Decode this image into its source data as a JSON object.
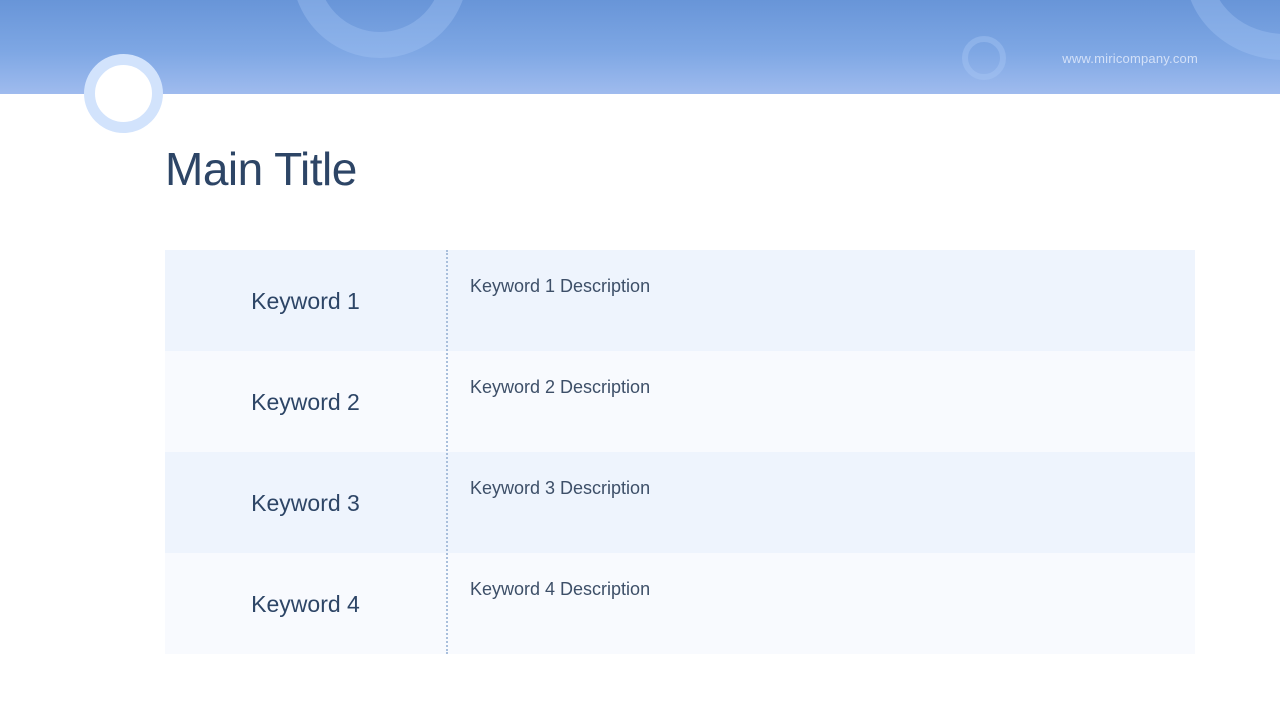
{
  "header": {
    "url": "www.miricompany.com"
  },
  "title": "Main Title",
  "rows": [
    {
      "keyword": "Keyword 1",
      "description": "Keyword 1 Description"
    },
    {
      "keyword": "Keyword 2",
      "description": "Keyword 2 Description"
    },
    {
      "keyword": "Keyword 3",
      "description": "Keyword 3 Description"
    },
    {
      "keyword": "Keyword 4",
      "description": "Keyword 4 Description"
    }
  ],
  "colors": {
    "header_top": "#6895d8",
    "header_bottom": "#9fbbee",
    "text": "#2d4566",
    "row_alt": "#eef4fd"
  }
}
